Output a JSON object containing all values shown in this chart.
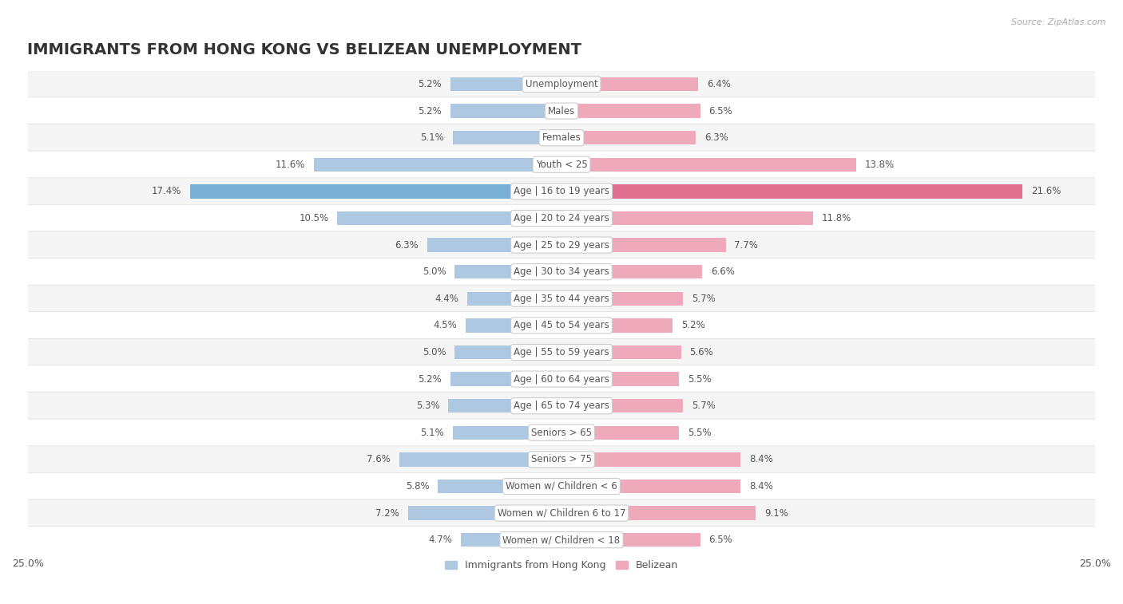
{
  "title": "IMMIGRANTS FROM HONG KONG VS BELIZEAN UNEMPLOYMENT",
  "source": "Source: ZipAtlas.com",
  "categories": [
    "Unemployment",
    "Males",
    "Females",
    "Youth < 25",
    "Age | 16 to 19 years",
    "Age | 20 to 24 years",
    "Age | 25 to 29 years",
    "Age | 30 to 34 years",
    "Age | 35 to 44 years",
    "Age | 45 to 54 years",
    "Age | 55 to 59 years",
    "Age | 60 to 64 years",
    "Age | 65 to 74 years",
    "Seniors > 65",
    "Seniors > 75",
    "Women w/ Children < 6",
    "Women w/ Children 6 to 17",
    "Women w/ Children < 18"
  ],
  "left_values": [
    5.2,
    5.2,
    5.1,
    11.6,
    17.4,
    10.5,
    6.3,
    5.0,
    4.4,
    4.5,
    5.0,
    5.2,
    5.3,
    5.1,
    7.6,
    5.8,
    7.2,
    4.7
  ],
  "right_values": [
    6.4,
    6.5,
    6.3,
    13.8,
    21.6,
    11.8,
    7.7,
    6.6,
    5.7,
    5.2,
    5.6,
    5.5,
    5.7,
    5.5,
    8.4,
    8.4,
    9.1,
    6.5
  ],
  "left_color": "#adc8e0",
  "right_color": "#eeaabb",
  "left_highlight_color": "#7aafd4",
  "right_highlight_color": "#e07090",
  "highlight_index": 4,
  "xlim": 25.0,
  "bar_height": 0.52,
  "background_color": "#ffffff",
  "row_color_even": "#f5f5f5",
  "row_color_odd": "#ffffff",
  "separator_color": "#dddddd",
  "left_label": "Immigrants from Hong Kong",
  "right_label": "Belizean",
  "title_fontsize": 14,
  "label_fontsize": 9,
  "value_fontsize": 8.5,
  "category_fontsize": 8.5
}
